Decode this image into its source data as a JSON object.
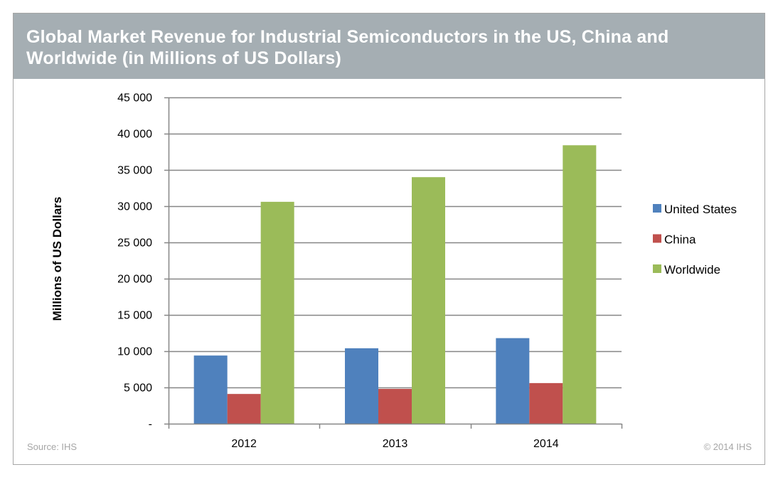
{
  "chart_data": {
    "type": "bar",
    "title": "Global Market Revenue for Industrial Semiconductors in the US, China and Worldwide (in Millions of US Dollars)",
    "xlabel": "",
    "ylabel": "Millions of US Dollars",
    "categories": [
      "2012",
      "2013",
      "2014"
    ],
    "series": [
      {
        "name": "United States",
        "color": "#4f81bd",
        "values": [
          9400,
          10400,
          11800
        ]
      },
      {
        "name": "China",
        "color": "#c0504d",
        "values": [
          4100,
          4800,
          5600
        ]
      },
      {
        "name": "Worldwide",
        "color": "#9bbb59",
        "values": [
          30600,
          34000,
          38400
        ]
      }
    ],
    "ylim": [
      0,
      45000
    ],
    "yticks": [
      0,
      5000,
      10000,
      15000,
      20000,
      25000,
      30000,
      35000,
      40000,
      45000
    ],
    "ytick_labels": [
      "-",
      "5 000",
      "10 000",
      "15 000",
      "20 000",
      "25 000",
      "30 000",
      "35 000",
      "40 000",
      "45 000"
    ],
    "grid": true,
    "legend_position": "right"
  },
  "footer": {
    "source": "Source: IHS",
    "copyright": "© 2014 IHS"
  },
  "colors": {
    "header_background": "#a5aeb3",
    "gridline": "#868686"
  }
}
